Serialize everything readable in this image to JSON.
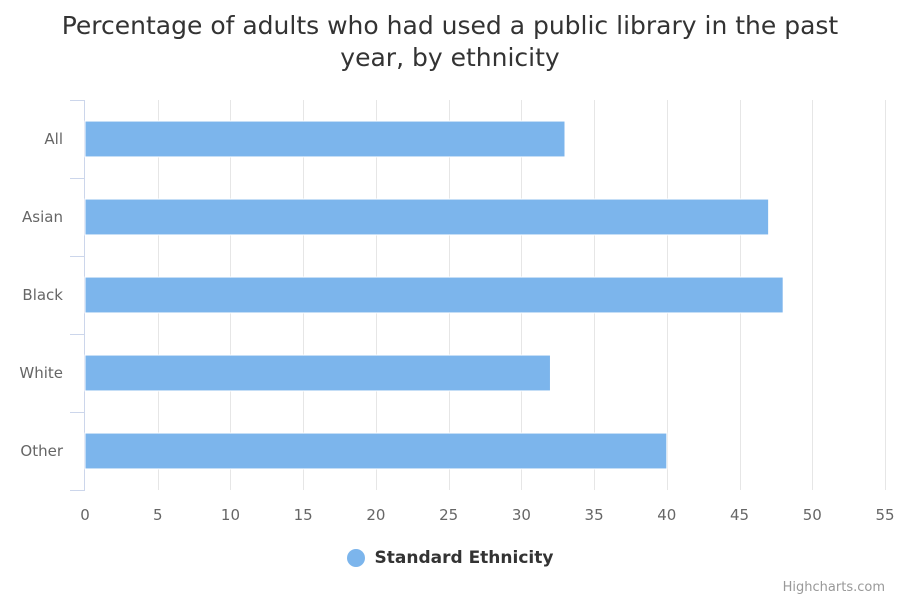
{
  "chart_data": {
    "type": "bar",
    "orientation": "horizontal",
    "title": "Percentage of adults who had used a public library in the past year, by ethnicity",
    "categories": [
      "All",
      "Asian",
      "Black",
      "White",
      "Other"
    ],
    "series": [
      {
        "name": "Standard Ethnicity",
        "values": [
          33,
          47,
          48,
          32,
          40
        ],
        "color": "#7cb5ec"
      }
    ],
    "xlim": [
      0,
      55
    ],
    "ticks": [
      0,
      5,
      10,
      15,
      20,
      25,
      30,
      35,
      40,
      45,
      50,
      55
    ],
    "grid": true,
    "legend_position": "bottom-center"
  },
  "credits": "Highcharts.com",
  "colors": {
    "bar": "#7cb5ec",
    "grid": "#e6e6e6",
    "axis": "#ccd6eb",
    "text": "#333333",
    "tick_text": "#666666"
  }
}
